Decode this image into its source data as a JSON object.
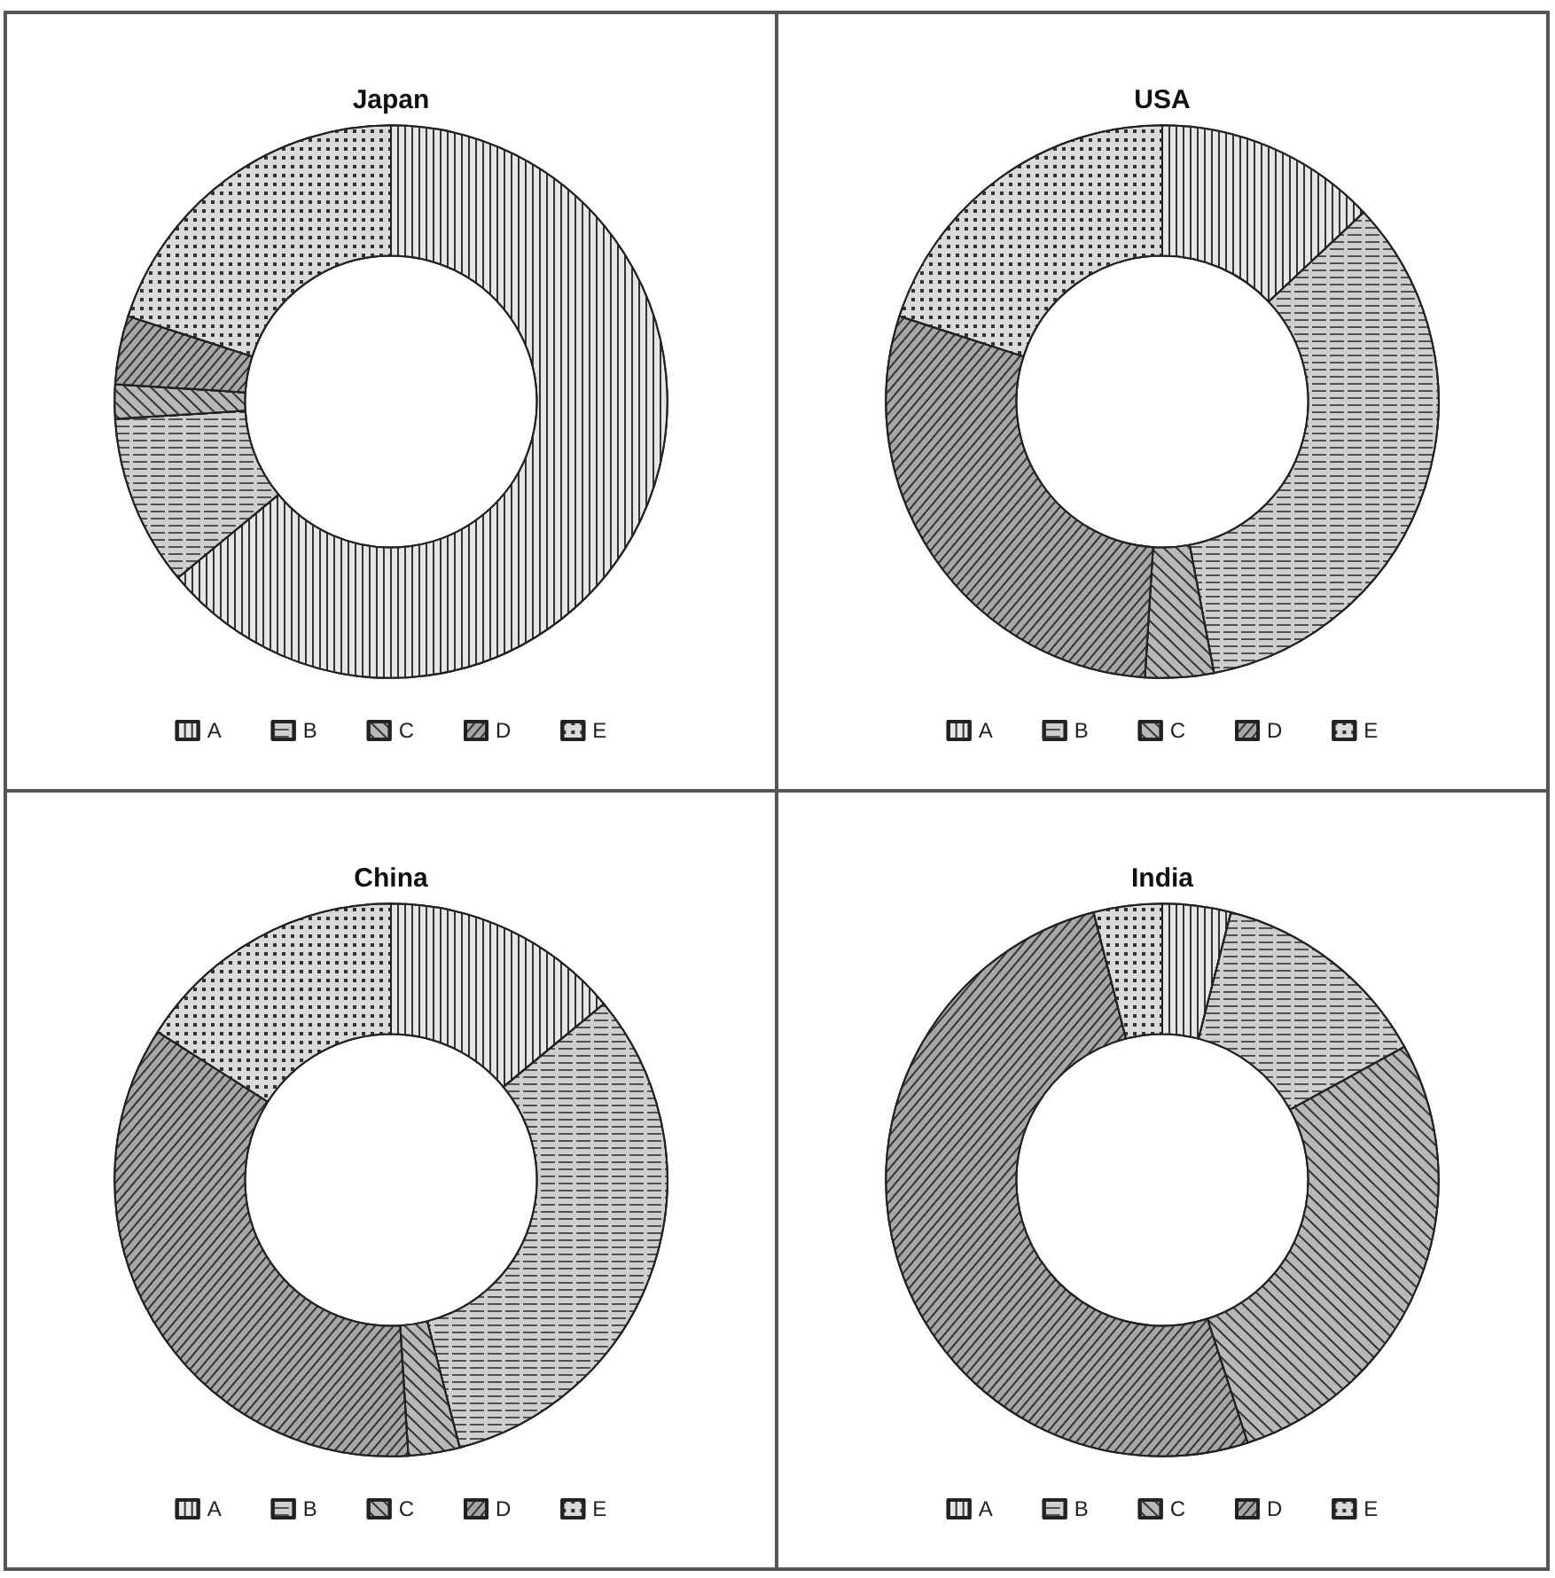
{
  "chart_data": [
    {
      "type": "donut",
      "title": "Japan",
      "categories": [
        "A",
        "B",
        "C",
        "D",
        "E"
      ],
      "values": [
        64,
        10,
        2,
        4,
        20
      ],
      "colors": [
        "#e6e6e6",
        "#cfcfcf",
        "#b8b8b8",
        "#a6a6a6",
        "#dadada"
      ],
      "legend": "bottom"
    },
    {
      "type": "donut",
      "title": "USA",
      "categories": [
        "A",
        "B",
        "C",
        "D",
        "E"
      ],
      "values": [
        13,
        34,
        4,
        29,
        20
      ],
      "colors": [
        "#e6e6e6",
        "#cfcfcf",
        "#b8b8b8",
        "#a6a6a6",
        "#dadada"
      ],
      "legend": "bottom"
    },
    {
      "type": "donut",
      "title": "China",
      "categories": [
        "A",
        "B",
        "C",
        "D",
        "E"
      ],
      "values": [
        14,
        32,
        3,
        35,
        16
      ],
      "colors": [
        "#e6e6e6",
        "#cfcfcf",
        "#b8b8b8",
        "#a6a6a6",
        "#dadada"
      ],
      "legend": "bottom"
    },
    {
      "type": "donut",
      "title": "India",
      "categories": [
        "A",
        "B",
        "C",
        "D",
        "E"
      ],
      "values": [
        4,
        13,
        28,
        51,
        4
      ],
      "colors": [
        "#e6e6e6",
        "#cfcfcf",
        "#b8b8b8",
        "#a6a6a6",
        "#dadada"
      ],
      "legend": "bottom"
    }
  ]
}
